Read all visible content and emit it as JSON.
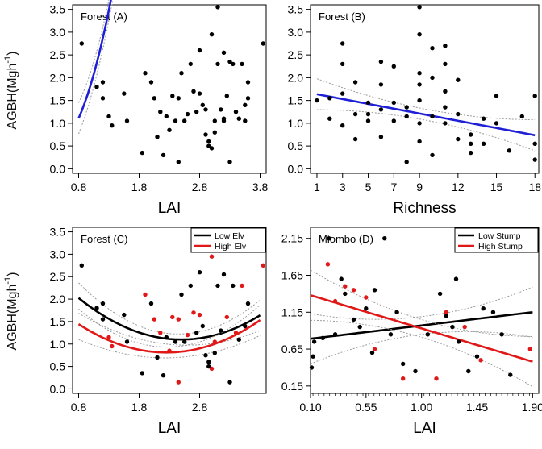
{
  "figure": {
    "ylabel_main": "AGBH(Mgh",
    "ylabel_exp": "-1",
    "ylabel_close": ")"
  },
  "chart_data": [
    {
      "id": "A",
      "type": "scatter",
      "title": "Forest (A)",
      "xlabel": "LAI",
      "xlim": [
        0.7,
        3.9
      ],
      "ylim": [
        -0.1,
        3.6
      ],
      "xticks": [
        "0.8",
        "1.8",
        "2.8",
        "3.8"
      ],
      "xtick_values": [
        0.8,
        1.8,
        2.8,
        3.8
      ],
      "yticks": [
        "0.0",
        "0.5",
        "1.0",
        "1.5",
        "2.0",
        "2.5",
        "3.0",
        "3.5"
      ],
      "ytick_values": [
        0,
        0.5,
        1,
        1.5,
        2,
        2.5,
        3,
        3.5
      ],
      "points": [
        [
          0.85,
          2.75
        ],
        [
          1.1,
          1.8
        ],
        [
          1.2,
          1.9
        ],
        [
          1.2,
          1.55
        ],
        [
          1.3,
          1.15
        ],
        [
          1.35,
          0.95
        ],
        [
          1.55,
          1.65
        ],
        [
          1.6,
          1.05
        ],
        [
          1.85,
          0.35
        ],
        [
          1.9,
          2.1
        ],
        [
          2.0,
          1.9
        ],
        [
          2.05,
          1.55
        ],
        [
          2.1,
          0.7
        ],
        [
          2.15,
          1.25
        ],
        [
          2.2,
          0.3
        ],
        [
          2.25,
          1.15
        ],
        [
          2.3,
          0.85
        ],
        [
          2.35,
          1.6
        ],
        [
          2.4,
          1.05
        ],
        [
          2.45,
          1.55
        ],
        [
          2.45,
          0.15
        ],
        [
          2.5,
          2.1
        ],
        [
          2.55,
          1.05
        ],
        [
          2.6,
          1.2
        ],
        [
          2.7,
          1.7
        ],
        [
          2.75,
          1.25
        ],
        [
          2.8,
          1.65
        ],
        [
          2.85,
          1.4
        ],
        [
          2.9,
          0.75
        ],
        [
          2.95,
          0.6
        ],
        [
          2.95,
          0.5
        ],
        [
          3.0,
          0.45
        ],
        [
          3.05,
          0.8
        ],
        [
          3.05,
          1.05
        ],
        [
          3.1,
          2.3
        ],
        [
          3.15,
          1.3
        ],
        [
          3.2,
          1.1
        ],
        [
          3.25,
          1.6
        ],
        [
          3.3,
          0.15
        ],
        [
          3.35,
          2.3
        ],
        [
          3.4,
          1.25
        ],
        [
          3.45,
          1.1
        ],
        [
          3.5,
          2.3
        ],
        [
          3.55,
          1.05
        ],
        [
          3.55,
          1.4
        ],
        [
          3.6,
          1.9
        ],
        [
          3.2,
          2.55
        ],
        [
          3.1,
          3.55
        ],
        [
          3.3,
          2.35
        ],
        [
          3.6,
          1.55
        ],
        [
          3.85,
          2.75
        ],
        [
          2.65,
          2.3
        ],
        [
          3.0,
          2.95
        ],
        [
          2.8,
          2.6
        ],
        [
          2.9,
          1.3
        ],
        [
          3.2,
          1.05
        ]
      ],
      "fits": [
        {
          "name": "",
          "color": "#1f1fd6",
          "x_range": [
            0.8,
            3.8
          ],
          "coef": [
            0.95,
            -2.6,
            3.5
          ]
        }
      ]
    },
    {
      "id": "B",
      "type": "scatter",
      "title": "Forest (B)",
      "xlabel": "Richness",
      "xlim": [
        0.5,
        18.3
      ],
      "ylim": [
        -0.1,
        3.6
      ],
      "xticks": [
        "1",
        "3",
        "5",
        "7",
        "9",
        "12",
        "15",
        "18"
      ],
      "xtick_values": [
        1,
        3,
        5,
        7,
        9,
        12,
        15,
        18
      ],
      "yticks": [
        "0.0",
        "0.5",
        "1.0",
        "1.5",
        "2.0",
        "2.5",
        "3.0",
        "3.5"
      ],
      "ytick_values": [
        0,
        0.5,
        1,
        1.5,
        2,
        2.5,
        3,
        3.5
      ],
      "points": [
        [
          1,
          1.5
        ],
        [
          2,
          1.55
        ],
        [
          2,
          1.1
        ],
        [
          3,
          2.75
        ],
        [
          3,
          2.3
        ],
        [
          3,
          1.65
        ],
        [
          3,
          0.95
        ],
        [
          4,
          1.2
        ],
        [
          4,
          1.9
        ],
        [
          4,
          0.65
        ],
        [
          5,
          1.2
        ],
        [
          5,
          1.05
        ],
        [
          5,
          1.45
        ],
        [
          6,
          1.3
        ],
        [
          6,
          1.85
        ],
        [
          6,
          0.7
        ],
        [
          6,
          2.35
        ],
        [
          7,
          1.45
        ],
        [
          7,
          1.05
        ],
        [
          7,
          2.25
        ],
        [
          8,
          1.15
        ],
        [
          8,
          1.35
        ],
        [
          8,
          0.15
        ],
        [
          9,
          1.0
        ],
        [
          9,
          3.55
        ],
        [
          9,
          2.95
        ],
        [
          9,
          1.85
        ],
        [
          9,
          2.1
        ],
        [
          9,
          1.5
        ],
        [
          9,
          0.6
        ],
        [
          10,
          2.65
        ],
        [
          10,
          1.15
        ],
        [
          10,
          0.3
        ],
        [
          10,
          2.0
        ],
        [
          11,
          2.7
        ],
        [
          11,
          2.3
        ],
        [
          11,
          1.7
        ],
        [
          11,
          1.35
        ],
        [
          11,
          1.0
        ],
        [
          12,
          1.95
        ],
        [
          12,
          1.2
        ],
        [
          12,
          0.65
        ],
        [
          13,
          0.75
        ],
        [
          13,
          0.55
        ],
        [
          13,
          0.35
        ],
        [
          14,
          1.1
        ],
        [
          14,
          0.55
        ],
        [
          15,
          1.6
        ],
        [
          15,
          1.0
        ],
        [
          16,
          0.4
        ],
        [
          17,
          1.15
        ],
        [
          18,
          0.55
        ],
        [
          18,
          0.2
        ],
        [
          18,
          1.6
        ]
      ],
      "fits": [
        {
          "name": "",
          "color": "#1f1fd6",
          "x_range": [
            1,
            18
          ],
          "coef": [
            1.69,
            -0.053,
            0
          ]
        }
      ]
    },
    {
      "id": "C",
      "type": "scatter",
      "title": "Forest (C)",
      "xlabel": "LAI",
      "xlim": [
        0.7,
        3.9
      ],
      "ylim": [
        -0.1,
        3.6
      ],
      "xticks": [
        "0.8",
        "1.8",
        "2.8"
      ],
      "xtick_values": [
        0.8,
        1.8,
        2.8
      ],
      "yticks": [
        "0.0",
        "0.5",
        "1.0",
        "1.5",
        "2.0",
        "2.5",
        "3.0",
        "3.5"
      ],
      "ytick_values": [
        0,
        0.5,
        1,
        1.5,
        2,
        2.5,
        3,
        3.5
      ],
      "legend": [
        {
          "label": "Low Elv",
          "color": "#000000"
        },
        {
          "label": "High Elv",
          "color": "#e01818"
        }
      ],
      "points": [
        [
          0.85,
          2.75,
          0
        ],
        [
          1.1,
          1.8,
          0
        ],
        [
          1.2,
          1.9,
          0
        ],
        [
          1.2,
          1.55,
          0
        ],
        [
          1.55,
          1.65,
          0
        ],
        [
          1.6,
          1.05,
          0
        ],
        [
          1.85,
          0.35,
          0
        ],
        [
          2.0,
          1.9,
          0
        ],
        [
          2.1,
          0.7,
          0
        ],
        [
          2.2,
          0.3,
          0
        ],
        [
          2.25,
          1.15,
          0
        ],
        [
          2.4,
          1.05,
          0
        ],
        [
          2.5,
          2.1,
          0
        ],
        [
          2.55,
          1.05,
          0
        ],
        [
          2.75,
          1.25,
          0
        ],
        [
          2.85,
          1.4,
          0
        ],
        [
          2.9,
          0.75,
          0
        ],
        [
          2.95,
          0.6,
          0
        ],
        [
          2.95,
          0.5,
          0
        ],
        [
          3.05,
          0.8,
          0
        ],
        [
          3.1,
          2.3,
          0
        ],
        [
          3.15,
          1.3,
          0
        ],
        [
          3.3,
          0.15,
          0
        ],
        [
          3.35,
          2.3,
          0
        ],
        [
          3.45,
          1.1,
          0
        ],
        [
          3.55,
          1.4,
          0
        ],
        [
          3.6,
          1.9,
          0
        ],
        [
          3.1,
          3.55,
          0
        ],
        [
          3.2,
          2.55,
          0
        ],
        [
          2.8,
          2.6,
          0
        ],
        [
          2.65,
          2.3,
          0
        ],
        [
          1.35,
          0.95,
          1
        ],
        [
          1.3,
          1.15,
          1
        ],
        [
          1.9,
          2.1,
          1
        ],
        [
          2.05,
          1.55,
          1
        ],
        [
          2.15,
          1.25,
          1
        ],
        [
          2.35,
          1.6,
          1
        ],
        [
          2.45,
          0.15,
          1
        ],
        [
          2.45,
          1.55,
          1
        ],
        [
          2.6,
          1.2,
          1
        ],
        [
          2.7,
          1.7,
          1
        ],
        [
          2.8,
          1.65,
          1
        ],
        [
          3.0,
          0.45,
          1
        ],
        [
          3.05,
          1.05,
          1
        ],
        [
          3.25,
          1.6,
          1
        ],
        [
          3.4,
          1.25,
          1
        ],
        [
          3.5,
          2.3,
          1
        ],
        [
          3.85,
          2.75,
          1
        ],
        [
          2.3,
          0.85,
          1
        ],
        [
          3.0,
          2.95,
          1
        ]
      ],
      "fits": [
        {
          "name": "Low Elv",
          "color": "#000000",
          "x_range": [
            0.8,
            3.8
          ],
          "coef": [
            3.1,
            -1.6,
            0.32
          ]
        },
        {
          "name": "High Elv",
          "color": "#e01818",
          "x_range": [
            0.8,
            3.8
          ],
          "coef": [
            2.33,
            -1.35,
            0.3
          ]
        }
      ]
    },
    {
      "id": "D",
      "type": "scatter",
      "title": "Miombo (D)",
      "xlabel": "LAI",
      "xlim": [
        0.1,
        1.95
      ],
      "ylim": [
        0.05,
        2.3
      ],
      "xticks": [
        "0.10",
        "0.55",
        "1.00",
        "1.45",
        "1.90"
      ],
      "xtick_values": [
        0.1,
        0.55,
        1.0,
        1.45,
        1.9
      ],
      "yticks": [
        "0.15",
        "0.65",
        "1.15",
        "1.65",
        "2.15"
      ],
      "ytick_values": [
        0.15,
        0.65,
        1.15,
        1.65,
        2.15
      ],
      "legend": [
        {
          "label": "Low Stump",
          "color": "#000000"
        },
        {
          "label": "High Stump",
          "color": "#e01818"
        }
      ],
      "points": [
        [
          0.11,
          0.4,
          0
        ],
        [
          0.12,
          0.55,
          0
        ],
        [
          0.13,
          0.75,
          0
        ],
        [
          0.2,
          0.8,
          0
        ],
        [
          0.25,
          2.15,
          0
        ],
        [
          0.3,
          0.85,
          0
        ],
        [
          0.35,
          1.6,
          0
        ],
        [
          0.38,
          1.4,
          0
        ],
        [
          0.45,
          1.05,
          0
        ],
        [
          0.5,
          0.95,
          0
        ],
        [
          0.55,
          1.2,
          0
        ],
        [
          0.6,
          0.6,
          0
        ],
        [
          0.62,
          1.45,
          0
        ],
        [
          0.7,
          2.15,
          0
        ],
        [
          0.75,
          0.85,
          0
        ],
        [
          0.8,
          1.15,
          0
        ],
        [
          0.85,
          0.45,
          0
        ],
        [
          0.95,
          0.35,
          0
        ],
        [
          1.05,
          0.85,
          0
        ],
        [
          1.15,
          1.4,
          0
        ],
        [
          1.2,
          1.1,
          0
        ],
        [
          1.25,
          0.95,
          0
        ],
        [
          1.28,
          1.6,
          0
        ],
        [
          1.3,
          0.75,
          0
        ],
        [
          1.38,
          0.35,
          0
        ],
        [
          1.45,
          0.55,
          0
        ],
        [
          1.5,
          1.2,
          0
        ],
        [
          1.58,
          1.15,
          0
        ],
        [
          1.65,
          0.85,
          0
        ],
        [
          1.72,
          0.3,
          0
        ],
        [
          0.24,
          1.8,
          1
        ],
        [
          0.3,
          1.3,
          1
        ],
        [
          0.38,
          1.5,
          1
        ],
        [
          0.45,
          1.45,
          1
        ],
        [
          0.55,
          1.35,
          1
        ],
        [
          0.62,
          0.65,
          1
        ],
        [
          0.85,
          0.25,
          1
        ],
        [
          1.12,
          0.25,
          1
        ],
        [
          1.2,
          1.15,
          1
        ],
        [
          1.35,
          0.95,
          1
        ],
        [
          1.48,
          0.5,
          1
        ],
        [
          1.88,
          0.65,
          1
        ]
      ],
      "fits": [
        {
          "name": "Low Stump",
          "color": "#000000",
          "x_range": [
            0.1,
            1.9
          ],
          "coef": [
            0.77,
            0.2,
            0
          ]
        },
        {
          "name": "High Stump",
          "color": "#e01818",
          "x_range": [
            0.1,
            1.9
          ],
          "coef": [
            1.43,
            -0.5,
            0
          ]
        }
      ]
    }
  ]
}
